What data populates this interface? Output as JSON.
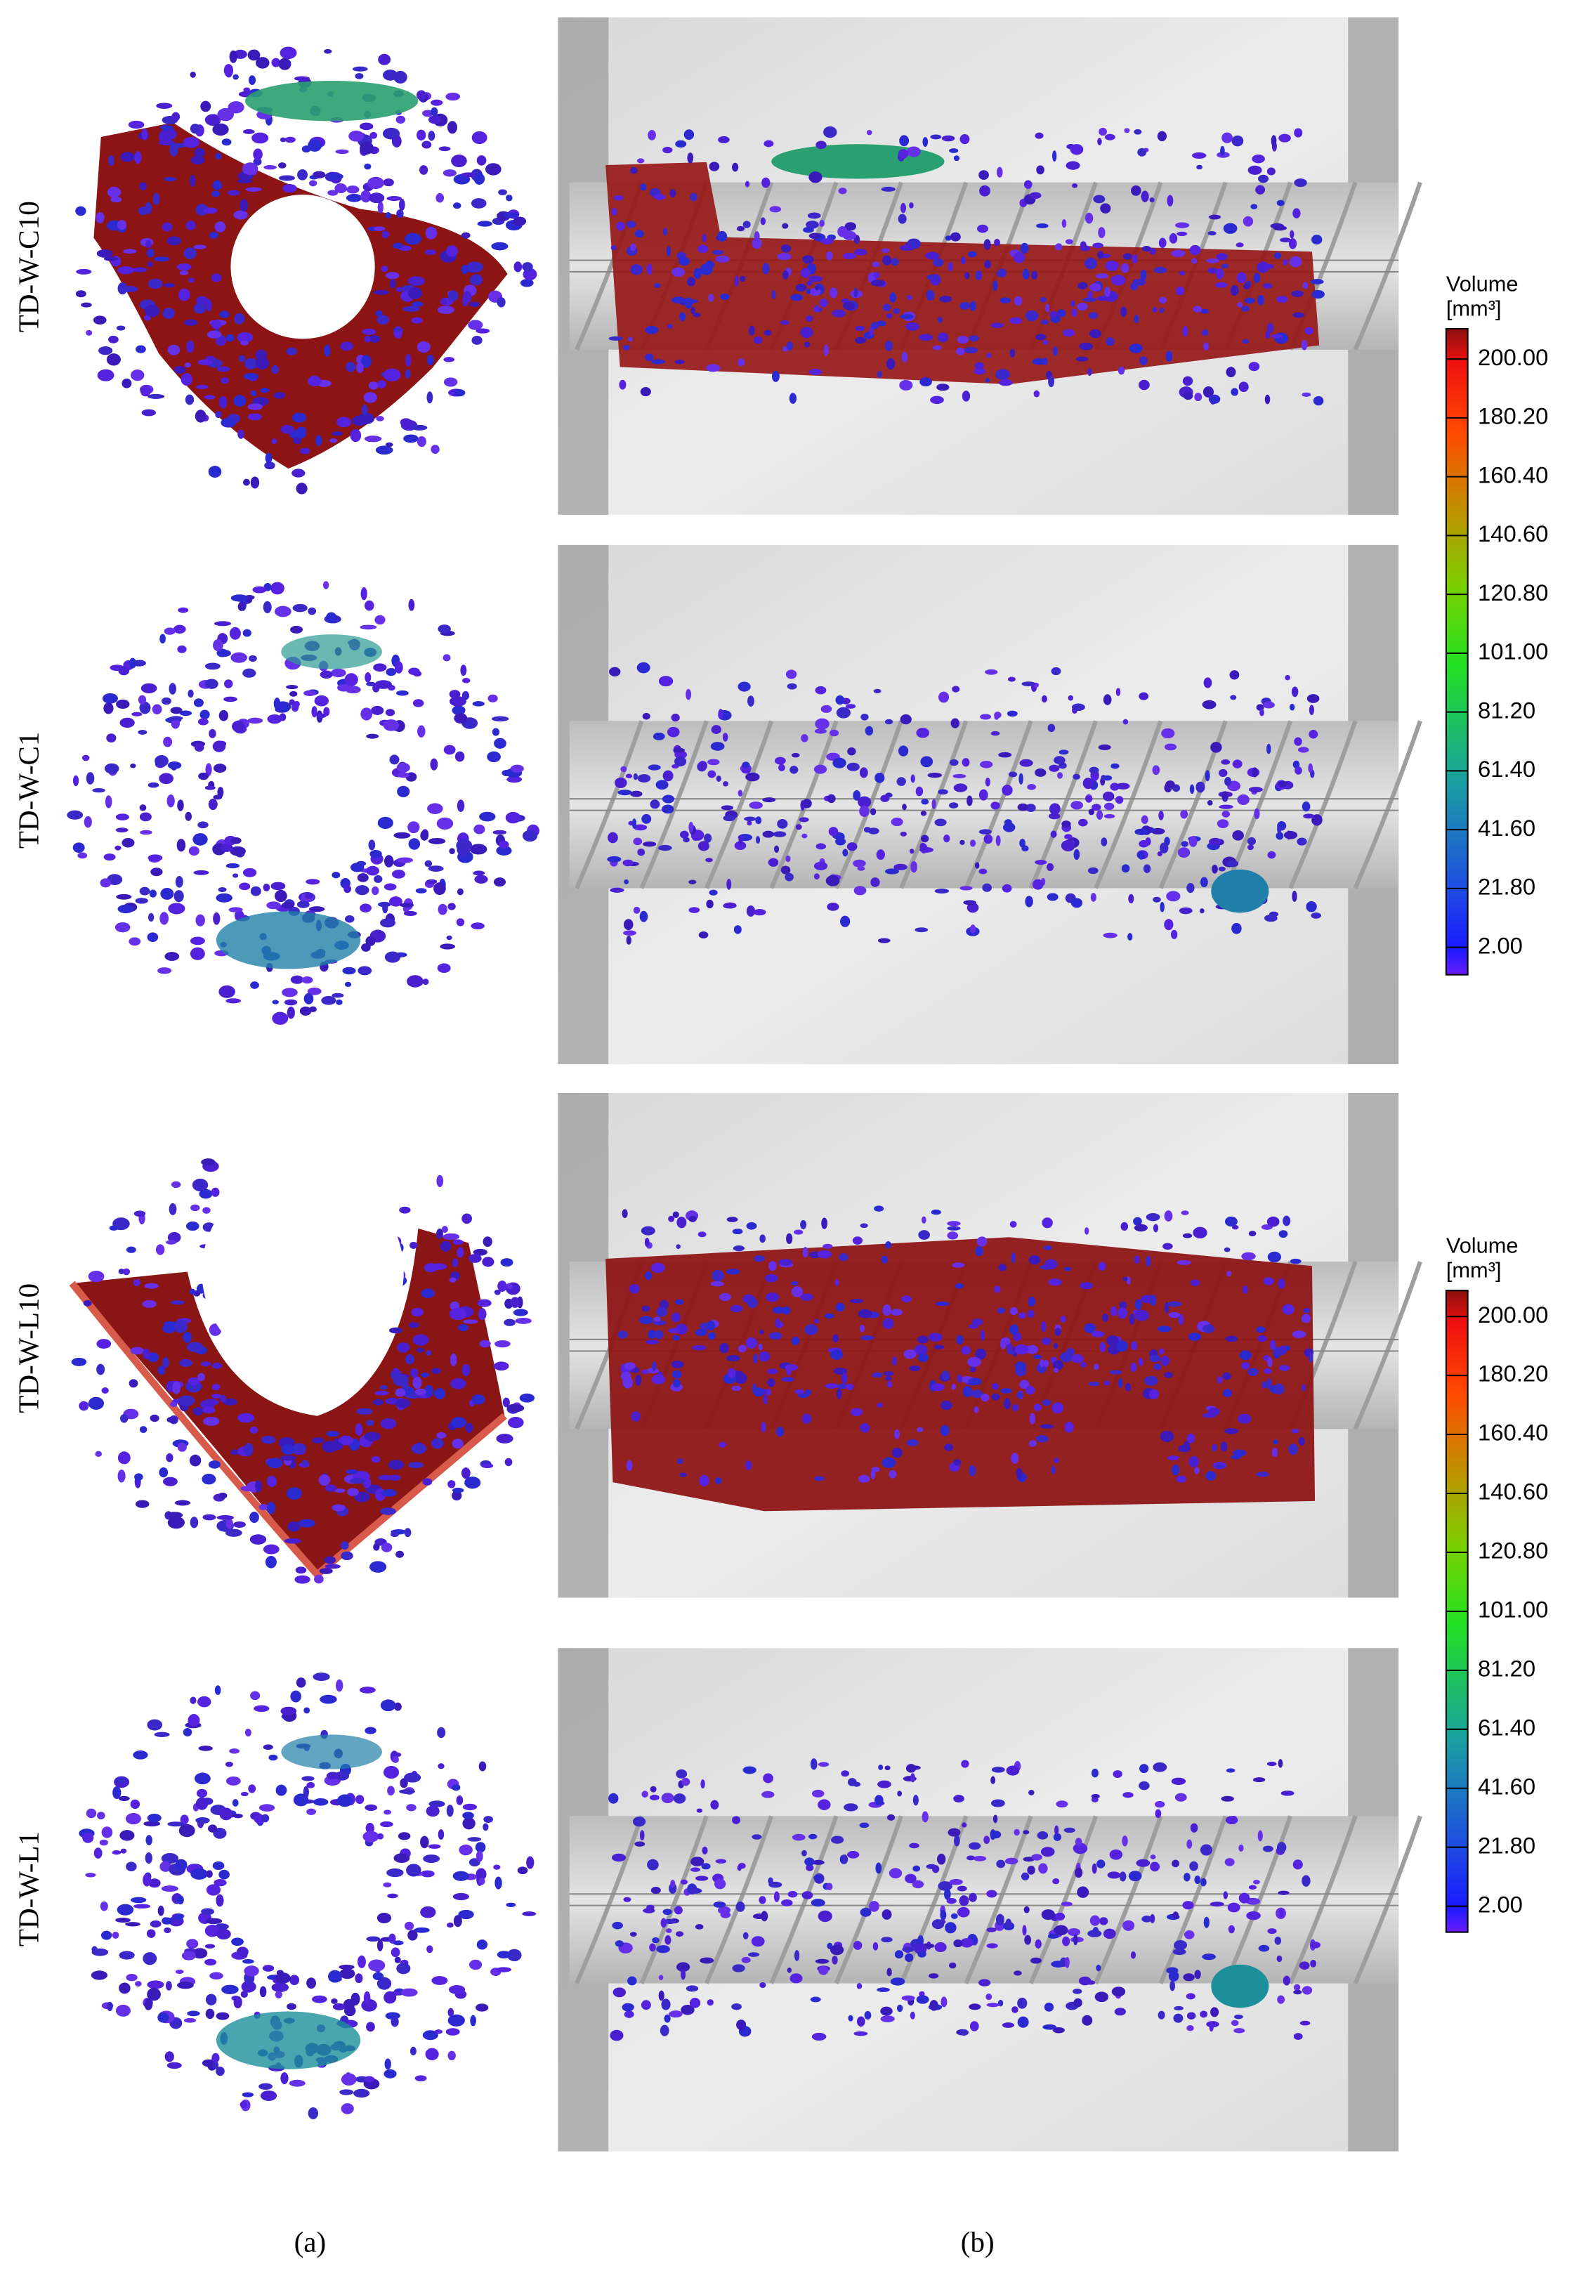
{
  "panels": {
    "a": "(a)",
    "b": "(b)"
  },
  "rows": [
    {
      "label": "TD-W-C10"
    },
    {
      "label": "TD-W-C1"
    },
    {
      "label": "TD-W-L10"
    },
    {
      "label": "TD-W-L1"
    }
  ],
  "colorbars": [
    {
      "title": "Volume",
      "unit": "[mm³]",
      "ticks": [
        {
          "value": 200,
          "label": "200.00"
        },
        {
          "value": 180.2,
          "label": "180.20"
        },
        {
          "value": 160.4,
          "label": "160.40"
        },
        {
          "value": 140.6,
          "label": "140.60"
        },
        {
          "value": 120.8,
          "label": "120.80"
        },
        {
          "value": 101,
          "label": "101.00"
        },
        {
          "value": 81.2,
          "label": "81.20"
        },
        {
          "value": 61.4,
          "label": "61.40"
        },
        {
          "value": 41.6,
          "label": "41.60"
        },
        {
          "value": 21.8,
          "label": "21.80"
        },
        {
          "value": 2,
          "label": "2.00"
        }
      ]
    },
    {
      "title": "Volume",
      "unit": "[mm³]",
      "ticks": [
        {
          "value": 200,
          "label": "200.00"
        },
        {
          "value": 180.2,
          "label": "180.20"
        },
        {
          "value": 160.4,
          "label": "160.40"
        },
        {
          "value": 140.6,
          "label": "140.60"
        },
        {
          "value": 120.8,
          "label": "120.80"
        },
        {
          "value": 101,
          "label": "101.00"
        },
        {
          "value": 81.2,
          "label": "81.20"
        },
        {
          "value": 61.4,
          "label": "61.40"
        },
        {
          "value": 41.6,
          "label": "41.60"
        },
        {
          "value": 21.8,
          "label": "21.80"
        },
        {
          "value": 2,
          "label": "2.00"
        }
      ]
    }
  ]
}
